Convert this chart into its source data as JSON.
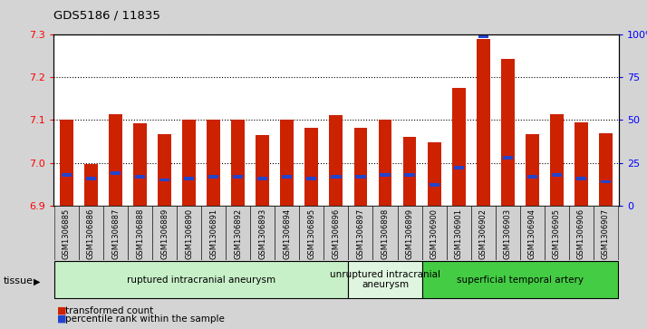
{
  "title": "GDS5186 / 11835",
  "samples": [
    "GSM1306885",
    "GSM1306886",
    "GSM1306887",
    "GSM1306888",
    "GSM1306889",
    "GSM1306890",
    "GSM1306891",
    "GSM1306892",
    "GSM1306893",
    "GSM1306894",
    "GSM1306895",
    "GSM1306896",
    "GSM1306897",
    "GSM1306898",
    "GSM1306899",
    "GSM1306900",
    "GSM1306901",
    "GSM1306902",
    "GSM1306903",
    "GSM1306904",
    "GSM1306905",
    "GSM1306906",
    "GSM1306907"
  ],
  "transformed_count": [
    7.1,
    6.998,
    7.113,
    7.093,
    7.067,
    7.102,
    7.1,
    7.1,
    7.065,
    7.102,
    7.082,
    7.112,
    7.082,
    7.1,
    7.06,
    7.048,
    7.175,
    7.29,
    7.242,
    7.068,
    7.113,
    7.095,
    7.07
  ],
  "percentile_rank": [
    18,
    16,
    19,
    17,
    15,
    16,
    17,
    17,
    16,
    17,
    16,
    17,
    17,
    18,
    18,
    12,
    22,
    99,
    28,
    17,
    18,
    16,
    14
  ],
  "groups": [
    {
      "label": "ruptured intracranial aneurysm",
      "start": 0,
      "end": 12,
      "color": "#c8f0c8"
    },
    {
      "label": "unruptured intracranial\naneurysm",
      "start": 12,
      "end": 15,
      "color": "#e0f5e0"
    },
    {
      "label": "superficial temporal artery",
      "start": 15,
      "end": 23,
      "color": "#44cc44"
    }
  ],
  "ylim_left": [
    6.9,
    7.3
  ],
  "ylim_right": [
    0,
    100
  ],
  "yticks_left": [
    6.9,
    7.0,
    7.1,
    7.2,
    7.3
  ],
  "yticks_right": [
    0,
    25,
    50,
    75,
    100
  ],
  "ytick_labels_right": [
    "0",
    "25",
    "50",
    "75",
    "100%"
  ],
  "bar_color": "#cc2200",
  "blue_color": "#2244cc",
  "bar_width": 0.55,
  "background_color": "#d4d4d4",
  "plot_bg_color": "#ffffff",
  "cell_bg_color": "#d0d0d0",
  "grid_lines": [
    7.0,
    7.1,
    7.2,
    7.3
  ]
}
